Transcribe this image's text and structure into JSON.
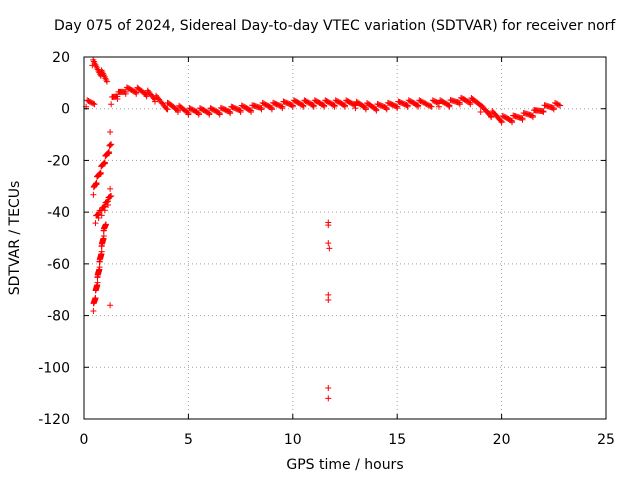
{
  "chart_data": {
    "type": "scatter",
    "title": "Day 075 of 2024, Sidereal Day-to-day VTEC variation (SDTVAR) for receiver norf",
    "xlabel": "GPS time / hours",
    "ylabel": "SDTVAR / TECUs",
    "xlim": [
      0,
      25
    ],
    "ylim": [
      -120,
      20
    ],
    "xticks": [
      0,
      5,
      10,
      15,
      20,
      25
    ],
    "yticks": [
      -120,
      -100,
      -80,
      -60,
      -40,
      -20,
      0,
      20
    ],
    "xtick_labels": [
      "0",
      "5",
      "10",
      "15",
      "20",
      "25"
    ],
    "ytick_labels": [
      "-120",
      "-100",
      "-80",
      "-60",
      "-40",
      "-20",
      "0",
      "20"
    ],
    "grid": true,
    "marker": "+",
    "color": "#ff0000",
    "series_segments": [
      {
        "x": [
          0.1,
          0.5
        ],
        "y": [
          2,
          2
        ]
      },
      {
        "x": [
          0.4,
          1.1
        ],
        "y": [
          18,
          11
        ]
      },
      {
        "x": [
          1.3,
          1.6,
          2.0,
          2.5,
          3.0,
          3.4
        ],
        "y": [
          3,
          5,
          7,
          7,
          6,
          4
        ]
      },
      {
        "x": [
          3.4,
          4.0,
          4.5,
          5.0,
          5.5,
          6.0,
          6.5,
          7.0,
          7.5
        ],
        "y": [
          4,
          1,
          0,
          -1,
          -1,
          -1,
          -1,
          -0.5,
          0
        ]
      },
      {
        "x": [
          7.5,
          8.0,
          8.5,
          9.0,
          9.5,
          10.0,
          10.5,
          11.0,
          11.5,
          12.0,
          12.5,
          13.0
        ],
        "y": [
          0,
          0,
          1,
          1,
          1.5,
          2,
          2,
          2,
          2,
          2,
          2,
          2
        ]
      },
      {
        "x": [
          13.0,
          13.5,
          14.0,
          14.5,
          15.0,
          15.5,
          16.0,
          17.0,
          17.5,
          18.0,
          18.5,
          19.0
        ],
        "y": [
          1.5,
          1,
          0.5,
          1,
          1.5,
          2,
          2,
          2,
          2,
          3,
          3,
          2
        ]
      },
      {
        "x": [
          19.0,
          19.5,
          20.0,
          20.5,
          21.0,
          21.5,
          22.0,
          22.5,
          22.8
        ],
        "y": [
          0,
          -2,
          -4,
          -4,
          -3,
          -2,
          0,
          1,
          1
        ]
      },
      {
        "x": [
          0.45,
          0.6,
          0.8,
          1.0,
          1.2,
          1.3
        ],
        "y": [
          -32,
          -28,
          -24,
          -20,
          -16,
          -14
        ]
      },
      {
        "x": [
          0.55,
          0.7,
          0.85,
          1.0,
          1.15,
          1.3
        ],
        "y": [
          -43,
          -41,
          -40,
          -38,
          -36,
          -34
        ]
      },
      {
        "x": [
          0.45,
          0.55,
          0.65,
          0.75,
          0.85,
          0.95,
          1.05
        ],
        "y": [
          -77,
          -72,
          -66,
          -60,
          -54,
          -48,
          -44
        ]
      }
    ],
    "series_isolated": {
      "x": [
        1.25,
        1.25,
        1.25,
        11.7,
        11.7,
        11.7,
        11.75,
        11.7,
        11.7,
        11.7,
        11.7
      ],
      "y": [
        -9,
        -31,
        -76,
        -44,
        -45,
        -52,
        -54,
        -72,
        -74,
        -108,
        -112
      ]
    }
  }
}
